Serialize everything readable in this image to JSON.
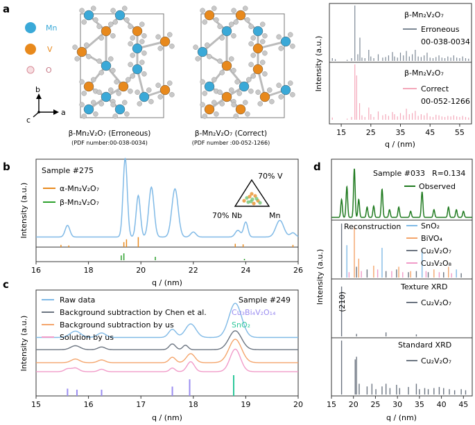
{
  "panels": {
    "a": {
      "label": "a",
      "legend": {
        "mn": "Mn",
        "v": "V",
        "o": "O"
      },
      "axes_labels": {
        "b": "b",
        "a": "a",
        "c": "c"
      },
      "caption_left": {
        "title": "β-Mn₂V₂O₇ (Erroneous)",
        "pdf": "(PDF number:00-038-0034)"
      },
      "caption_right": {
        "title": "β-Mn₂V₂O₇ (Correct)",
        "pdf": "(PDF number :00-052-1266)"
      },
      "colors": {
        "mn": "#3aa9d8",
        "v": "#e8891c",
        "o": "#c8c8c8"
      }
    },
    "b": {
      "label": "b",
      "sample": "Sample #275",
      "legend_alpha": "α-Mn₂V₂O₇",
      "legend_beta": "β-Mn₂V₂O₇",
      "ternary": {
        "top": "70% V",
        "left": "70% Nb",
        "right": "Mn"
      }
    },
    "c": {
      "label": "c",
      "sample": "Sample #249",
      "legend": [
        "Raw data",
        "Background subtraction by Chen et al.",
        "Background subtraction by us",
        "Solution by us"
      ],
      "phase1": "Cu₃Bi₄V₂O₁₄",
      "phase2": "SnO₂"
    },
    "d": {
      "label": "d",
      "sample": "Sample #033",
      "rfactor": "R=0.134",
      "observed": "Observed",
      "reconstruction": "Reconstruction",
      "phases": [
        "SnO₂",
        "BiVO₄",
        "Cu₂V₂O₇",
        "Cu₃V₂O₈"
      ],
      "texture": "Texture XRD",
      "texture_phase": "Cu₂V₂O₇",
      "texture_peak": "(210)",
      "standard": "Standard XRD",
      "standard_phase": "Cu₂V₂O₇"
    },
    "a_plot": {
      "top_title": "β-Mn₂V₂O₇",
      "top_label1": "Erroneous",
      "top_label2": "00-038-0034",
      "bottom_title": "β-Mn₂V₂O₇",
      "bottom_label1": "Correct",
      "bottom_label2": "00-052-1266"
    }
  },
  "chart_data": [
    {
      "id": "a-plot",
      "type": "bar",
      "xlabel": "q / (nm)",
      "ylabel": "Intensity (a.u.)",
      "xlim": [
        11,
        59
      ],
      "xticks": [
        "15",
        "25",
        "35",
        "45",
        "55"
      ],
      "series": [
        {
          "name": "Erroneous 00-038-0034",
          "color": "#7b8794",
          "x": [
            12,
            13,
            17,
            18.5,
            19.6,
            20.6,
            21.3,
            22,
            23,
            24.3,
            25,
            26,
            27.5,
            29,
            30,
            31,
            32.3,
            33,
            34,
            35,
            36,
            37,
            38,
            39,
            40,
            41,
            42,
            43,
            44,
            45,
            46,
            47,
            48,
            49,
            50,
            51,
            52,
            53,
            54,
            55,
            56,
            57,
            58
          ],
          "values": [
            0.05,
            0.03,
            0.02,
            0.05,
            1.0,
            0.12,
            0.42,
            0.06,
            0.05,
            0.2,
            0.08,
            0.05,
            0.12,
            0.06,
            0.07,
            0.1,
            0.16,
            0.08,
            0.06,
            0.15,
            0.1,
            0.18,
            0.08,
            0.12,
            0.2,
            0.08,
            0.07,
            0.1,
            0.15,
            0.06,
            0.05,
            0.07,
            0.1,
            0.06,
            0.05,
            0.08,
            0.06,
            0.1,
            0.06,
            0.05,
            0.08,
            0.05,
            0.04
          ]
        },
        {
          "name": "Correct 00-052-1266",
          "color": "#f4a7b9",
          "x": [
            12,
            17,
            18.5,
            19.6,
            20.2,
            21.2,
            22,
            23,
            24.3,
            25,
            26,
            27.5,
            29,
            30,
            31,
            32.3,
            33,
            34,
            35,
            36,
            37,
            38,
            39,
            40,
            41,
            42,
            43,
            44,
            45,
            46,
            47,
            48,
            49,
            50,
            51,
            52,
            53,
            54,
            55,
            56,
            57,
            58
          ],
          "values": [
            0.04,
            0.02,
            0.05,
            1.0,
            0.8,
            0.3,
            0.08,
            0.05,
            0.22,
            0.1,
            0.05,
            0.15,
            0.08,
            0.1,
            0.07,
            0.14,
            0.1,
            0.06,
            0.12,
            0.08,
            0.2,
            0.1,
            0.12,
            0.16,
            0.07,
            0.1,
            0.08,
            0.12,
            0.06,
            0.05,
            0.09,
            0.08,
            0.06,
            0.05,
            0.07,
            0.06,
            0.08,
            0.06,
            0.05,
            0.07,
            0.05,
            0.04
          ]
        }
      ]
    },
    {
      "id": "b-plot",
      "type": "line",
      "xlabel": "q / (nm)",
      "ylabel": "Intensity (a.u.)",
      "xlim": [
        16,
        26
      ],
      "xticks": [
        "16",
        "18",
        "20",
        "22",
        "24",
        "26"
      ],
      "series": [
        {
          "name": "Sample #275",
          "color": "#7fb9e6",
          "peaks": [
            [
              17.2,
              0.14,
              0.09
            ],
            [
              19.4,
              0.95,
              0.08
            ],
            [
              19.9,
              0.5,
              0.08
            ],
            [
              20.4,
              0.6,
              0.1
            ],
            [
              21.3,
              0.58,
              0.12
            ],
            [
              22.0,
              0.06,
              0.1
            ],
            [
              23.7,
              0.08,
              0.1
            ],
            [
              24.0,
              0.18,
              0.08
            ],
            [
              25.3,
              0.2,
              0.15
            ],
            [
              25.8,
              0.05,
              0.1
            ]
          ],
          "baseline": 0.08
        },
        {
          "name": "α-Mn₂V₂O₇",
          "color": "#e8891c",
          "x": [
            16.95,
            17.25,
            19.35,
            19.45,
            19.9,
            23.6,
            23.9,
            25.8
          ],
          "values": [
            0.2,
            0.15,
            0.45,
            0.7,
            0.9,
            0.3,
            0.25,
            0.2
          ]
        },
        {
          "name": "β-Mn₂V₂O₇",
          "color": "#2ca02c",
          "x": [
            19.25,
            19.35,
            20.55,
            23.95
          ],
          "values": [
            0.7,
            1.0,
            0.5,
            0.2
          ]
        }
      ]
    },
    {
      "id": "c-plot",
      "type": "line",
      "xlabel": "q / (nm)",
      "ylabel": "Intensity (a.u.)",
      "xlim": [
        15,
        20
      ],
      "xticks": [
        "15",
        "16",
        "17",
        "18",
        "19",
        "20"
      ],
      "series": [
        {
          "name": "Raw data",
          "color": "#7fb9e6",
          "offset": 3.2,
          "baseline": 0.05,
          "peaks": [
            [
              15.75,
              0.35,
              0.1
            ],
            [
              16.25,
              0.25,
              0.08
            ],
            [
              17.6,
              0.45,
              0.07
            ],
            [
              17.95,
              0.75,
              0.1
            ],
            [
              18.8,
              1.9,
              0.12
            ]
          ]
        },
        {
          "name": "Background subtraction by Chen et al.",
          "color": "#6b7480",
          "offset": 2.55,
          "baseline": 0.02,
          "peaks": [
            [
              15.75,
              0.22,
              0.09
            ],
            [
              16.25,
              0.15,
              0.07
            ],
            [
              17.6,
              0.32,
              0.06
            ],
            [
              17.85,
              0.25,
              0.05
            ],
            [
              18.8,
              1.05,
              0.12
            ]
          ]
        },
        {
          "name": "Background subtraction by us",
          "color": "#f4a46a",
          "offset": 1.85,
          "baseline": 0.0,
          "peaks": [
            [
              15.75,
              0.2,
              0.08
            ],
            [
              16.25,
              0.15,
              0.07
            ],
            [
              17.6,
              0.3,
              0.06
            ],
            [
              17.95,
              0.5,
              0.08
            ],
            [
              18.8,
              1.3,
              0.12
            ]
          ]
        },
        {
          "name": "Solution by us",
          "color": "#f19ac8",
          "offset": 1.35,
          "baseline": 0.0,
          "peaks": [
            [
              15.6,
              0.15,
              0.06
            ],
            [
              15.75,
              0.2,
              0.07
            ],
            [
              16.25,
              0.13,
              0.06
            ],
            [
              17.6,
              0.2,
              0.05
            ],
            [
              17.95,
              0.55,
              0.07
            ],
            [
              18.8,
              1.25,
              0.1
            ]
          ]
        },
        {
          "name": "Cu₃Bi₄V₂O₁₄",
          "color": "#9a8cf0",
          "x": [
            15.6,
            15.78,
            16.25,
            17.6,
            17.93
          ],
          "values": [
            0.35,
            0.3,
            0.3,
            0.45,
            0.8
          ]
        },
        {
          "name": "SnO₂",
          "color": "#2cc79a",
          "x": [
            18.77
          ],
          "values": [
            1.0
          ]
        }
      ]
    },
    {
      "id": "d-plot",
      "type": "line",
      "xlabel": "q / (nm)",
      "ylabel": "Intensity (a.u.)",
      "xlim": [
        15,
        47
      ],
      "xticks": [
        "15",
        "20",
        "25",
        "30",
        "35",
        "40",
        "45"
      ],
      "series": [
        {
          "name": "Observed",
          "color": "#1f7a1f",
          "peaks": [
            [
              17.3,
              0.35
            ],
            [
              18.5,
              0.6
            ],
            [
              20.2,
              0.95
            ],
            [
              21.2,
              0.35
            ],
            [
              23.1,
              0.2
            ],
            [
              24.6,
              0.22
            ],
            [
              26.5,
              0.55
            ],
            [
              28.2,
              0.15
            ],
            [
              30.3,
              0.2
            ],
            [
              33,
              0.12
            ],
            [
              35.6,
              0.5
            ],
            [
              38.3,
              0.15
            ],
            [
              41.6,
              0.2
            ],
            [
              43.4,
              0.15
            ],
            [
              45,
              0.12
            ]
          ]
        },
        {
          "name": "SnO₂",
          "color": "#7fb9e6",
          "x": [
            18.5,
            26.5,
            35.6,
            43.4
          ],
          "values": [
            0.6,
            0.55,
            0.5,
            0.15
          ]
        },
        {
          "name": "BiVO₄",
          "color": "#f4a46a",
          "x": [
            20.2,
            21.2,
            24.6,
            30.3,
            33,
            38.3,
            41.6
          ],
          "values": [
            0.95,
            0.35,
            0.22,
            0.2,
            0.12,
            0.15,
            0.2
          ]
        },
        {
          "name": "Cu₂V₂O₇",
          "color": "#6b7480",
          "x": [
            17.3,
            20.7,
            23.1,
            27.4,
            29.8,
            32.5,
            34.3,
            37,
            40.5,
            44.5
          ],
          "values": [
            1.0,
            0.2,
            0.15,
            0.12,
            0.15,
            0.1,
            0.12,
            0.1,
            0.1,
            0.08
          ]
        },
        {
          "name": "Cu₃V₂O₈",
          "color": "#f19ac8",
          "x": [
            19,
            21.8,
            25.5,
            28.7,
            31.2,
            36.5,
            39.5,
            42.3
          ],
          "values": [
            0.1,
            0.12,
            0.15,
            0.12,
            0.1,
            0.12,
            0.1,
            0.08
          ]
        },
        {
          "name": "Texture XRD Cu₂V₂O₇",
          "color": "#6b7480",
          "x": [
            17.3,
            20.7,
            27.4,
            34.3
          ],
          "values": [
            1.0,
            0.05,
            0.08,
            0.04
          ]
        },
        {
          "name": "Standard XRD Cu₂V₂O₇",
          "color": "#6b7480",
          "x": [
            17.3,
            20.4,
            20.7,
            21.3,
            23.1,
            24.2,
            25.1,
            26.5,
            27.4,
            28.3,
            29.8,
            30.5,
            32.5,
            34.3,
            35,
            36.2,
            37,
            38.3,
            39.5,
            40.5,
            41.8,
            43,
            44.5,
            45.5
          ],
          "values": [
            1.0,
            0.65,
            0.7,
            0.2,
            0.15,
            0.2,
            0.1,
            0.15,
            0.2,
            0.12,
            0.18,
            0.12,
            0.14,
            0.2,
            0.1,
            0.12,
            0.1,
            0.12,
            0.14,
            0.12,
            0.1,
            0.08,
            0.1,
            0.08
          ]
        }
      ]
    }
  ]
}
